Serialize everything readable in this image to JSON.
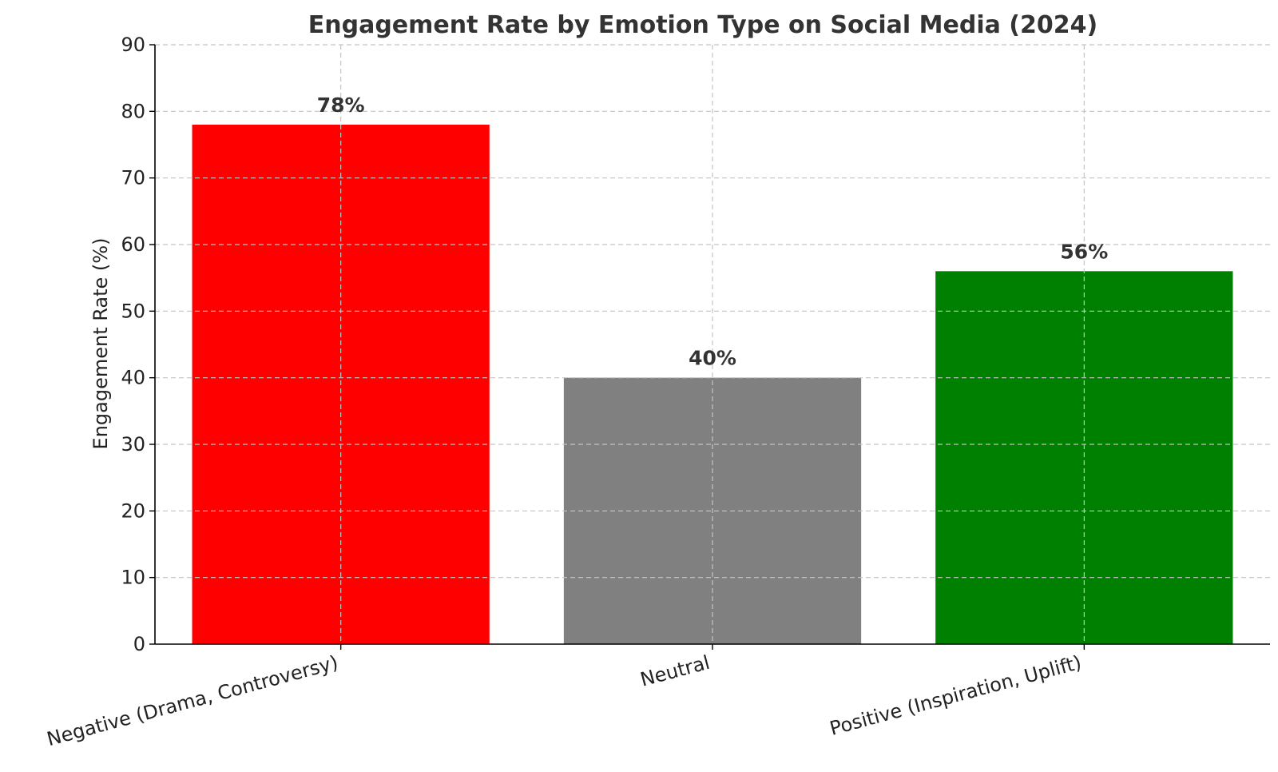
{
  "chart_data": {
    "type": "bar",
    "title": "Engagement Rate by Emotion Type on Social Media (2024)",
    "xlabel": "",
    "ylabel": "Engagement Rate (%)",
    "categories": [
      "Negative (Drama, Controversy)",
      "Neutral",
      "Positive (Inspiration, Uplift)"
    ],
    "values": [
      78,
      40,
      56
    ],
    "data_labels": [
      "78%",
      "40%",
      "56%"
    ],
    "colors": [
      "#ff0000",
      "#808080",
      "#008000"
    ],
    "ylim": [
      0,
      90
    ],
    "yticks": [
      0,
      10,
      20,
      30,
      40,
      50,
      60,
      70,
      80,
      90
    ],
    "grid": true,
    "xtick_rotation_deg": 15
  }
}
